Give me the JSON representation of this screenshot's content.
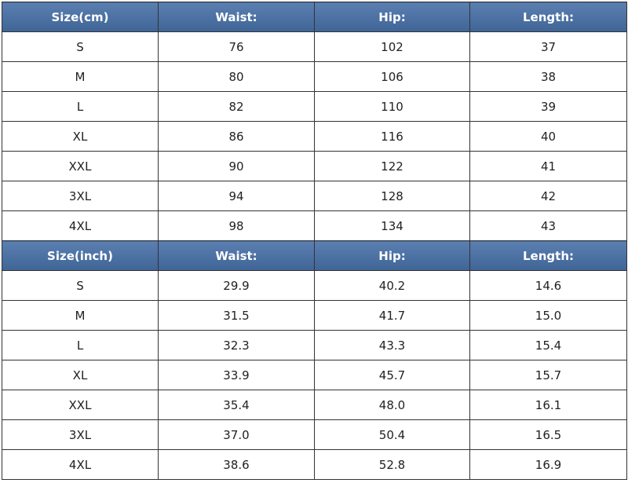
{
  "sections": [
    {
      "header": [
        "Size(cm)",
        "Waist:",
        "Hip:",
        "Length:"
      ],
      "rows": [
        [
          "S",
          "76",
          "102",
          "37"
        ],
        [
          "M",
          "80",
          "106",
          "38"
        ],
        [
          "L",
          "82",
          "110",
          "39"
        ],
        [
          "XL",
          "86",
          "116",
          "40"
        ],
        [
          "XXL",
          "90",
          "122",
          "41"
        ],
        [
          "3XL",
          "94",
          "128",
          "42"
        ],
        [
          "4XL",
          "98",
          "134",
          "43"
        ]
      ]
    },
    {
      "header": [
        "Size(inch)",
        "Waist:",
        "Hip:",
        "Length:"
      ],
      "rows": [
        [
          "S",
          "29.9",
          "40.2",
          "14.6"
        ],
        [
          "M",
          "31.5",
          "41.7",
          "15.0"
        ],
        [
          "L",
          "32.3",
          "43.3",
          "15.4"
        ],
        [
          "XL",
          "33.9",
          "45.7",
          "15.7"
        ],
        [
          "XXL",
          "35.4",
          "48.0",
          "16.1"
        ],
        [
          "3XL",
          "37.0",
          "50.4",
          "16.5"
        ],
        [
          "4XL",
          "38.6",
          "52.8",
          "16.9"
        ]
      ]
    }
  ]
}
